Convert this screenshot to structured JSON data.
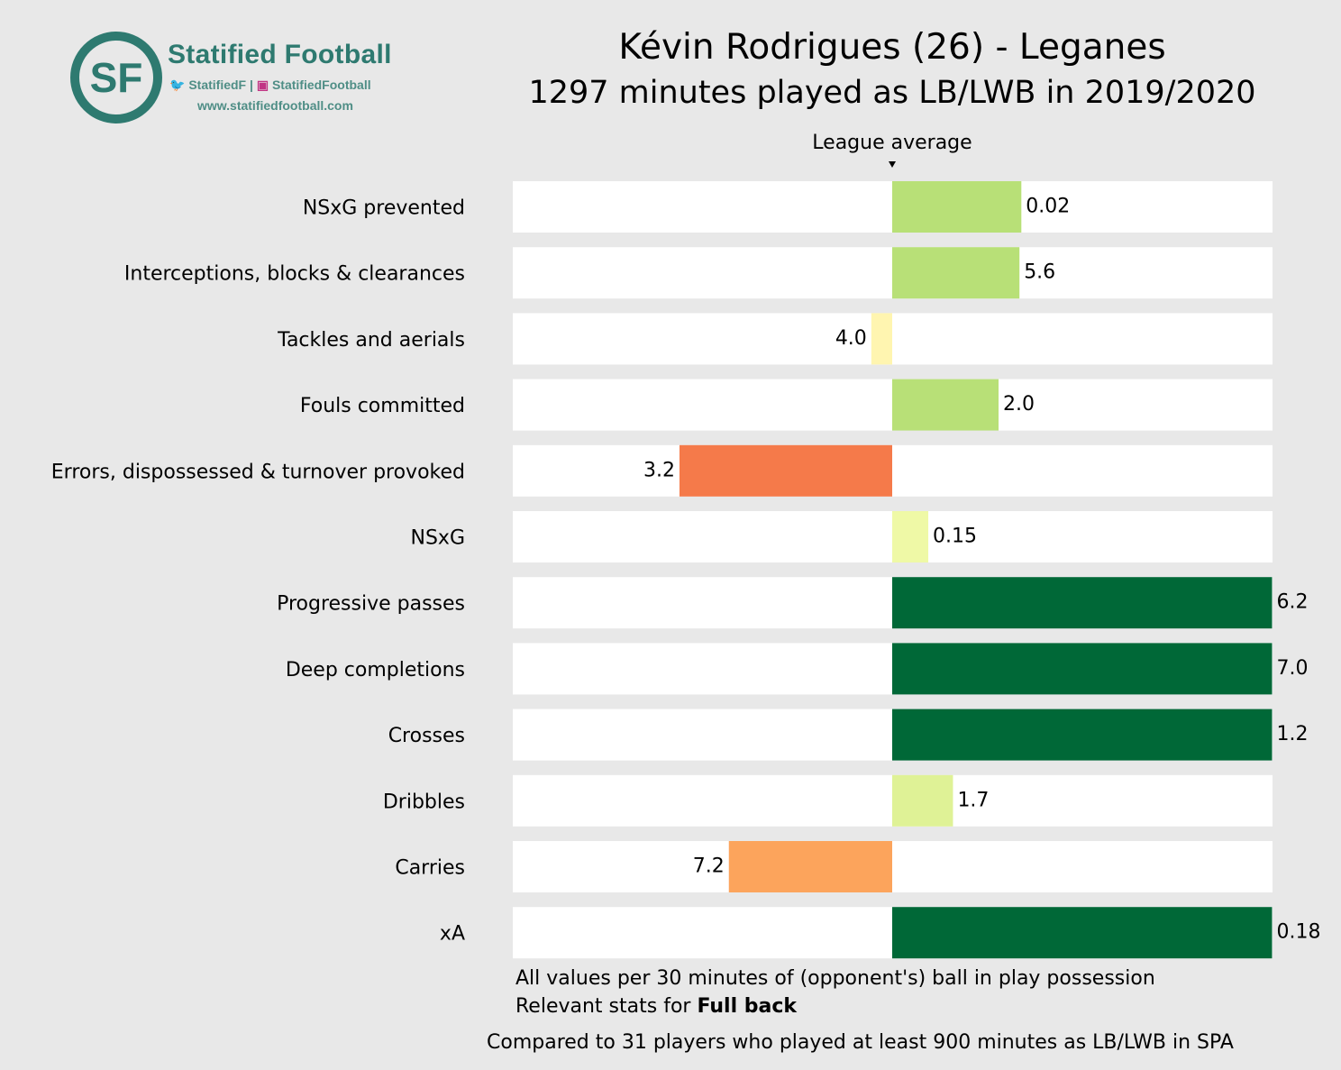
{
  "brand": {
    "initials": "SF",
    "name": "Statified Football",
    "twitter": "StatifiedF",
    "separator": "|",
    "instagram": "StatifiedFootball",
    "url": "www.statifiedfootball.com",
    "color": "#2e7a70"
  },
  "header": {
    "title": "Kévin Rodrigues (26) - Leganes",
    "subtitle": "1297 minutes played as LB/LWB in 2019/2020"
  },
  "chart_data": {
    "type": "bar",
    "orientation": "horizontal-diverging",
    "baseline_label": "League average",
    "scale": "deviation from league average, normalized to [-1, 1]",
    "xlim": [
      -1,
      1
    ],
    "categories": [
      "NSxG prevented",
      "Interceptions, blocks & clearances",
      "Tackles and aerials",
      "Fouls committed",
      "Errors, dispossessed & turnover provoked",
      "NSxG",
      "Progressive passes",
      "Deep completions",
      "Crosses",
      "Dribbles",
      "Carries",
      "xA"
    ],
    "values": [
      0.34,
      0.335,
      -0.055,
      0.28,
      -0.56,
      0.095,
      1.0,
      1.0,
      1.0,
      0.16,
      -0.43,
      1.0
    ],
    "value_labels": [
      "0.02",
      "5.6",
      "4.0",
      "2.0",
      "3.2",
      "0.15",
      "6.2",
      "7.0",
      "1.2",
      "1.7",
      "7.2",
      "0.18"
    ],
    "colors": [
      "#b8e077",
      "#b8e077",
      "#fff5b0",
      "#b8e077",
      "#f57a4a",
      "#eff9a6",
      "#006837",
      "#006837",
      "#006837",
      "#dff296",
      "#fca45c",
      "#006837"
    ]
  },
  "footer": {
    "line1": "All values per 30 minutes of (opponent's) ball in play possession",
    "line2_prefix": "Relevant stats for ",
    "line2_bold": "Full back",
    "line3": "Compared to 31 players who played at least 900 minutes as LB/LWB in SPA"
  }
}
